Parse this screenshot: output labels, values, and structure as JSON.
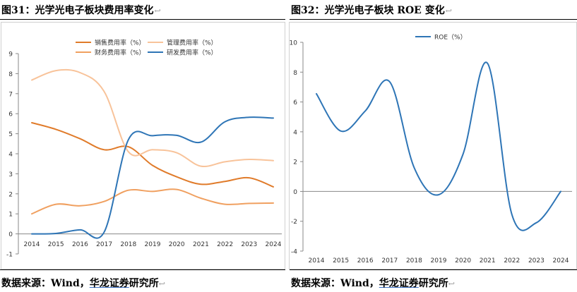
{
  "left": {
    "title": "图31：光学光电子板块费用率变化",
    "source_prefix": "数据来源：Wind，",
    "source_highlight": "华龙证券",
    "source_suffix": "研究所",
    "chart_data": {
      "type": "line",
      "title": "",
      "xlabel": "",
      "ylabel": "",
      "x": [
        "2014",
        "2015",
        "2016",
        "2017",
        "2018",
        "2019",
        "2020",
        "2021",
        "2022",
        "2023",
        "2024"
      ],
      "ylim": [
        -1,
        9
      ],
      "yticks": [
        -1,
        0,
        1,
        2,
        3,
        4,
        5,
        6,
        7,
        8,
        9
      ],
      "grid": false,
      "legend": "top-center",
      "series": [
        {
          "name": "销售费用率（%）",
          "color": "#E07B2A",
          "values": [
            5.55,
            5.22,
            4.75,
            4.2,
            4.35,
            3.42,
            2.85,
            2.48,
            2.62,
            2.8,
            2.35
          ]
        },
        {
          "name": "管理费用率（%）",
          "color": "#F8C39A",
          "values": [
            7.68,
            8.15,
            8.05,
            7.1,
            4.1,
            4.2,
            4.05,
            3.38,
            3.6,
            3.72,
            3.66
          ]
        },
        {
          "name": "财务费用率（%）",
          "color": "#F0A060",
          "values": [
            1.0,
            1.48,
            1.4,
            1.62,
            2.18,
            2.12,
            2.22,
            1.78,
            1.48,
            1.52,
            1.54
          ]
        },
        {
          "name": "研发费用率（%）",
          "color": "#2E75B6",
          "values": [
            0.0,
            0.02,
            0.2,
            0.1,
            4.7,
            4.9,
            4.92,
            4.58,
            5.6,
            5.82,
            5.78
          ]
        }
      ]
    }
  },
  "right": {
    "title": "图32：光学光电子板块 ROE 变化",
    "source_prefix": "数据来源：Wind，",
    "source_highlight": "华龙证券",
    "source_suffix": "研究所",
    "chart_data": {
      "type": "line",
      "title": "",
      "xlabel": "",
      "ylabel": "",
      "x": [
        "2014",
        "2015",
        "2016",
        "2017",
        "2018",
        "2019",
        "2020",
        "2021",
        "2022",
        "2023",
        "2024"
      ],
      "ylim": [
        -4,
        10
      ],
      "yticks": [
        -4,
        -2,
        0,
        2,
        4,
        6,
        8,
        10
      ],
      "grid": false,
      "legend": "top-center",
      "series": [
        {
          "name": "ROE（%）",
          "color": "#2E75B6",
          "values": [
            6.55,
            4.05,
            5.4,
            7.35,
            1.6,
            -0.22,
            2.5,
            8.6,
            -1.55,
            -2.1,
            0.0
          ]
        }
      ]
    }
  },
  "return_mark": "↩"
}
